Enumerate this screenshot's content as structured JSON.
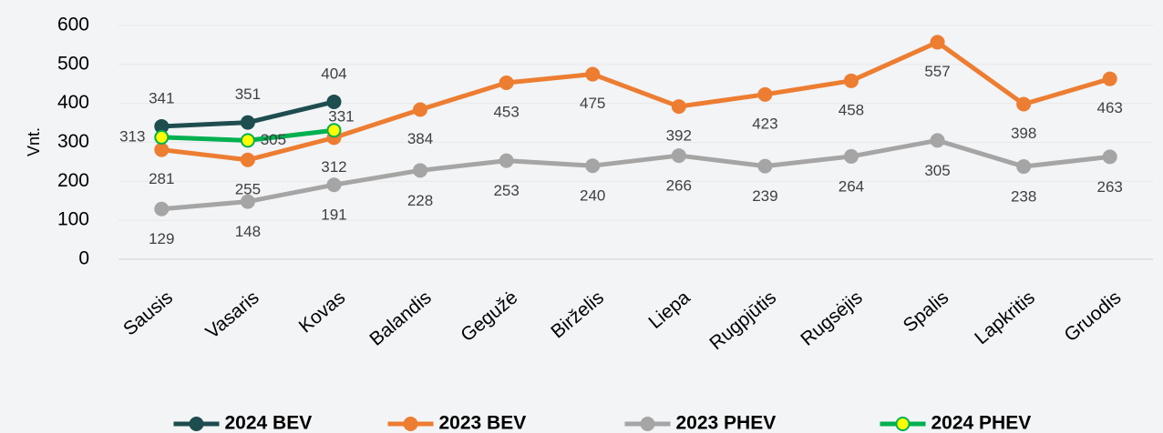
{
  "chart_data": {
    "type": "line",
    "y_label": "Vnt.",
    "categories": [
      "Sausis",
      "Vasaris",
      "Kovas",
      "Balandis",
      "Gegužė",
      "Birželis",
      "Liepa",
      "Rugpjūtis",
      "Rugsėjis",
      "Spalis",
      "Lapkritis",
      "Gruodis"
    ],
    "series": [
      {
        "name": "2024 BEV",
        "color": "#1e4d4f",
        "marker_fill": "#1e4d4f",
        "values": [
          341,
          351,
          404,
          null,
          null,
          null,
          null,
          null,
          null,
          null,
          null,
          null
        ]
      },
      {
        "name": "2023 BEV",
        "color": "#ed7d31",
        "marker_fill": "#ed7d31",
        "values": [
          281,
          255,
          312,
          384,
          453,
          475,
          392,
          423,
          458,
          557,
          398,
          463
        ]
      },
      {
        "name": "2023 PHEV",
        "color": "#a5a5a5",
        "marker_fill": "#a5a5a5",
        "values": [
          129,
          148,
          191,
          228,
          253,
          240,
          266,
          239,
          264,
          305,
          238,
          263
        ]
      },
      {
        "name": "2024 PHEV",
        "color": "#00b050",
        "marker_fill": "#ffff00",
        "values": [
          313,
          305,
          331,
          null,
          null,
          null,
          null,
          null,
          null,
          null,
          null,
          null
        ]
      }
    ],
    "ylim": [
      0,
      600
    ],
    "yticks": [
      0,
      100,
      200,
      300,
      400,
      500,
      600
    ],
    "grid": true,
    "legend": "bottom"
  }
}
